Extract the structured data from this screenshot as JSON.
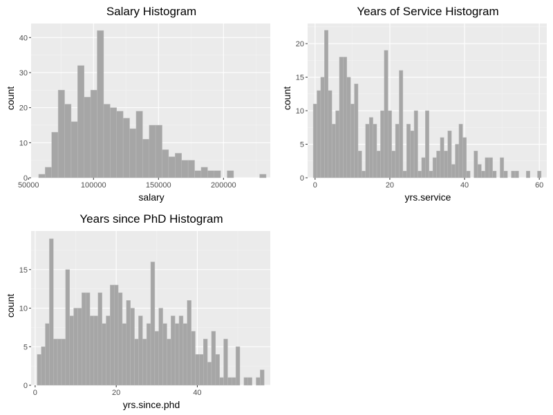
{
  "colors": {
    "panel_bg": "#ebebeb",
    "grid_major": "#ffffff",
    "grid_minor": "#f4f4f4",
    "bar_fill": "#a6a6a6",
    "bar_stroke": "#bdbdbd",
    "tick_text": "#4d4d4d"
  },
  "chart_data": [
    {
      "type": "bar",
      "title": "Salary Histogram",
      "xlabel": "salary",
      "ylabel": "count",
      "xlim": [
        52000,
        236000
      ],
      "ylim": [
        0,
        44
      ],
      "xticks": [
        50000,
        100000,
        150000,
        200000
      ],
      "xtick_labels": [
        "50000",
        "100000",
        "150000",
        "200000"
      ],
      "yticks": [
        0,
        10,
        20,
        30,
        40
      ],
      "ytick_labels": [
        "0",
        "10",
        "20",
        "30",
        "40"
      ],
      "bin_start": 57800,
      "bin_width": 5000,
      "values": [
        1,
        3,
        13,
        25,
        21,
        16,
        32,
        23,
        25,
        42,
        21,
        20,
        19,
        17,
        14,
        19,
        11,
        15,
        15,
        8,
        6,
        7,
        5,
        5,
        2,
        3,
        2,
        2,
        0,
        2,
        0,
        0,
        0,
        0,
        1
      ],
      "grid": true,
      "legend": "none"
    },
    {
      "type": "bar",
      "title": "Years of Service Histogram",
      "xlabel": "yrs.service",
      "ylabel": "count",
      "xlim": [
        -2,
        62
      ],
      "ylim": [
        0,
        23
      ],
      "xticks": [
        0,
        20,
        40,
        60
      ],
      "xtick_labels": [
        "0",
        "20",
        "40",
        "60"
      ],
      "yticks": [
        0,
        5,
        10,
        15,
        20
      ],
      "ytick_labels": [
        "0",
        "5",
        "10",
        "15",
        "20"
      ],
      "bin_start": -0.5,
      "bin_width": 1,
      "values": [
        11,
        13,
        15,
        22,
        13,
        8,
        10,
        18,
        18,
        15,
        11,
        14,
        4,
        1,
        8,
        9,
        8,
        4,
        10,
        19,
        10,
        4,
        8,
        16,
        1,
        8,
        7,
        10,
        1,
        3,
        10,
        1,
        3,
        4,
        6,
        4,
        7,
        2,
        5,
        8,
        6,
        1,
        0,
        4,
        2,
        1,
        3,
        3,
        1,
        0,
        3,
        1,
        0,
        1,
        1,
        0,
        0,
        1,
        0,
        0,
        1
      ],
      "grid": true,
      "legend": "none"
    },
    {
      "type": "bar",
      "title": "Years since PhD Histogram",
      "xlabel": "yrs.since.phd",
      "ylabel": "count",
      "xlim": [
        -1,
        58
      ],
      "ylim": [
        0,
        20
      ],
      "xticks": [
        0,
        20,
        40
      ],
      "xtick_labels": [
        "0",
        "20",
        "40"
      ],
      "yticks": [
        0,
        5,
        10,
        15
      ],
      "ytick_labels": [
        "0",
        "5",
        "10",
        "15"
      ],
      "bin_start": 0.5,
      "bin_width": 1,
      "values": [
        4,
        5,
        8,
        19,
        6,
        6,
        6,
        15,
        9,
        10,
        10,
        12,
        12,
        9,
        9,
        12,
        8,
        9,
        13,
        13,
        12,
        8,
        11,
        10,
        6,
        9,
        6,
        8,
        16,
        7,
        10,
        8,
        6,
        9,
        8,
        9,
        8,
        11,
        7,
        4,
        4,
        6,
        3,
        7,
        4,
        1,
        6,
        1,
        1,
        5,
        0,
        1,
        1,
        0,
        1,
        2
      ],
      "grid": true,
      "legend": "none"
    }
  ]
}
